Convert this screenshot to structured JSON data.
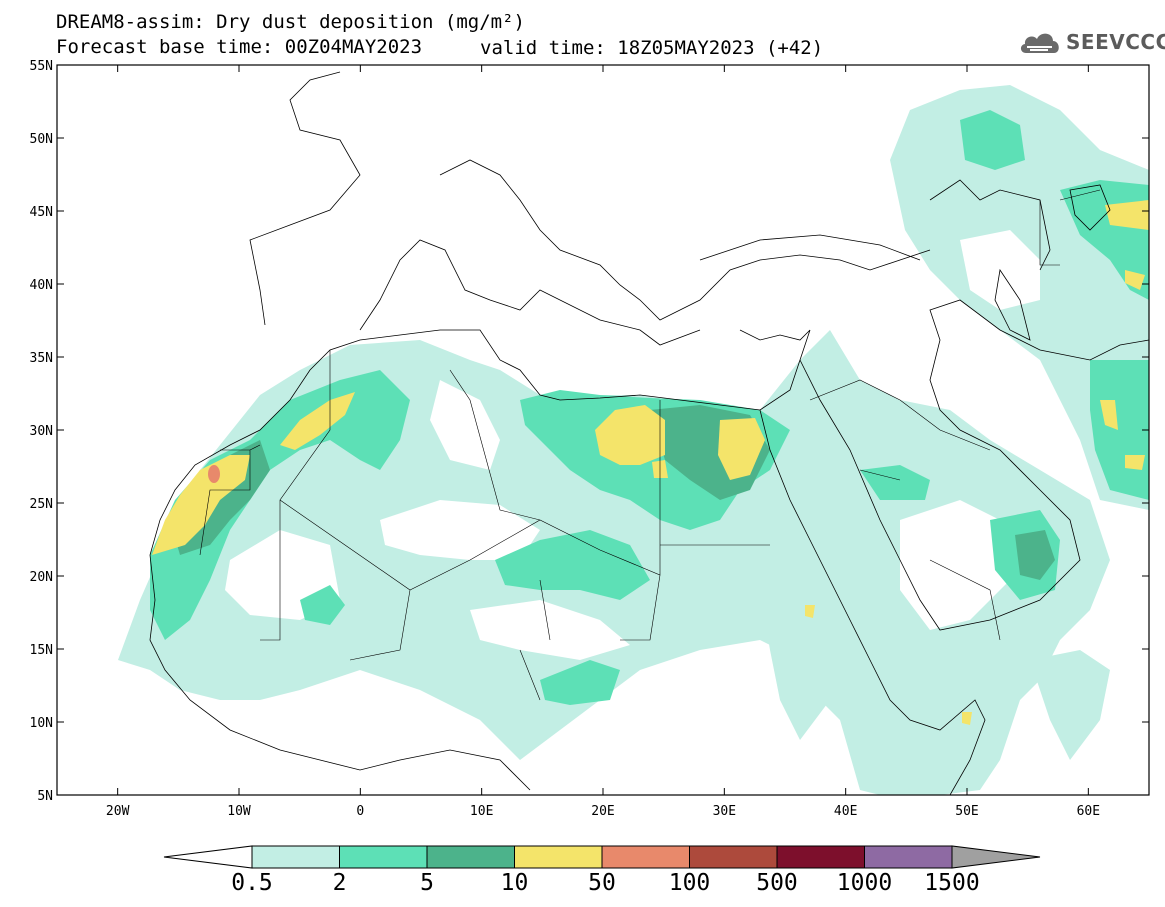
{
  "header": {
    "title_line1": "DREAM8-assim: Dry dust deposition (mg/m²)",
    "base_time": "Forecast base time: 00Z04MAY2023",
    "valid_time": "valid time: 18Z05MAY2023 (+42)",
    "logo_text": "SEEVCCC",
    "logo_icon": "cloud-icon"
  },
  "axes": {
    "lat_labels": [
      "55N",
      "50N",
      "45N",
      "40N",
      "35N",
      "30N",
      "25N",
      "20N",
      "15N",
      "10N",
      "5N"
    ],
    "lon_labels": [
      "20W",
      "10W",
      "0",
      "10E",
      "20E",
      "30E",
      "40E",
      "50E",
      "60E"
    ]
  },
  "colorbar": {
    "labels": [
      "0.5",
      "2",
      "5",
      "10",
      "50",
      "100",
      "500",
      "1000",
      "1500"
    ],
    "colors": [
      "#c2eee4",
      "#5de0b6",
      "#4cb38b",
      "#f4e46a",
      "#e8896b",
      "#ad4a3c",
      "#7d0f2c",
      "#8e6aa3"
    ],
    "under_color": "#ffffff",
    "over_color": "#a0a0a0"
  },
  "map": {
    "extent_lon": [
      -25,
      65
    ],
    "extent_lat": [
      5,
      55
    ]
  }
}
